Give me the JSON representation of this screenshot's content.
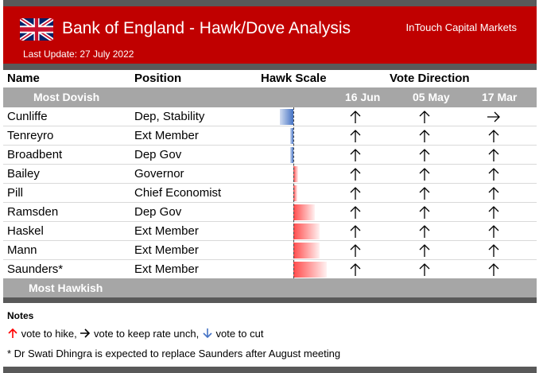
{
  "header": {
    "title": "Bank of England - Hawk/Dove Analysis",
    "brand": "InTouch Capital Markets",
    "last_update": "Last Update: 27 July 2022"
  },
  "columns": {
    "name": "Name",
    "position": "Position",
    "hawk_scale": "Hawk Scale",
    "vote_direction": "Vote Direction"
  },
  "bands": {
    "dovish": "Most Dovish",
    "hawkish": "Most Hawkish"
  },
  "vote_dates": [
    "16 Jun",
    "05 May",
    "17 Mar"
  ],
  "members": [
    {
      "name": "Cunliffe",
      "position": "Dep, Stability",
      "hawk_score": -0.17,
      "votes": [
        "up",
        "up",
        "right"
      ]
    },
    {
      "name": "Tenreyro",
      "position": "Ext Member",
      "hawk_score": -0.04,
      "votes": [
        "up",
        "up",
        "up"
      ]
    },
    {
      "name": "Broadbent",
      "position": "Dep Gov",
      "hawk_score": -0.04,
      "votes": [
        "up",
        "up",
        "up"
      ]
    },
    {
      "name": "Bailey",
      "position": "Governor",
      "hawk_score": 0.06,
      "votes": [
        "up",
        "up",
        "up"
      ]
    },
    {
      "name": "Pill",
      "position": "Chief Economist",
      "hawk_score": 0.05,
      "votes": [
        "up",
        "up",
        "up"
      ]
    },
    {
      "name": "Ramsden",
      "position": "Dep Gov",
      "hawk_score": 0.27,
      "votes": [
        "up",
        "up",
        "up"
      ]
    },
    {
      "name": "Haskel",
      "position": "Ext Member",
      "hawk_score": 0.33,
      "votes": [
        "up",
        "up",
        "up"
      ]
    },
    {
      "name": "Mann",
      "position": "Ext Member",
      "hawk_score": 0.33,
      "votes": [
        "up",
        "up",
        "up"
      ]
    },
    {
      "name": "Saunders*",
      "position": "Ext Member",
      "hawk_score": 0.42,
      "votes": [
        "up",
        "up",
        "up"
      ]
    }
  ],
  "notes": {
    "title": "Notes",
    "hike_text": "vote to hike,",
    "keep_text": "vote to keep rate unch,",
    "cut_text": "vote to cut",
    "footnote": "* Dr Swati Dhingra is expected to replace Saunders after August meeting"
  },
  "colors": {
    "header_bg": "#c00000",
    "band_bg": "#a6a6a6",
    "dark_bar": "#595959",
    "dove_bar": "#4472c4",
    "hawk_bar": "#ff4b4b",
    "hike_arrow": "#ff0000",
    "cut_arrow": "#4472c4"
  },
  "icons": {
    "flag": "union-jack-flag-icon",
    "up": "arrow-up-icon",
    "right": "arrow-right-icon",
    "down": "arrow-down-icon"
  }
}
